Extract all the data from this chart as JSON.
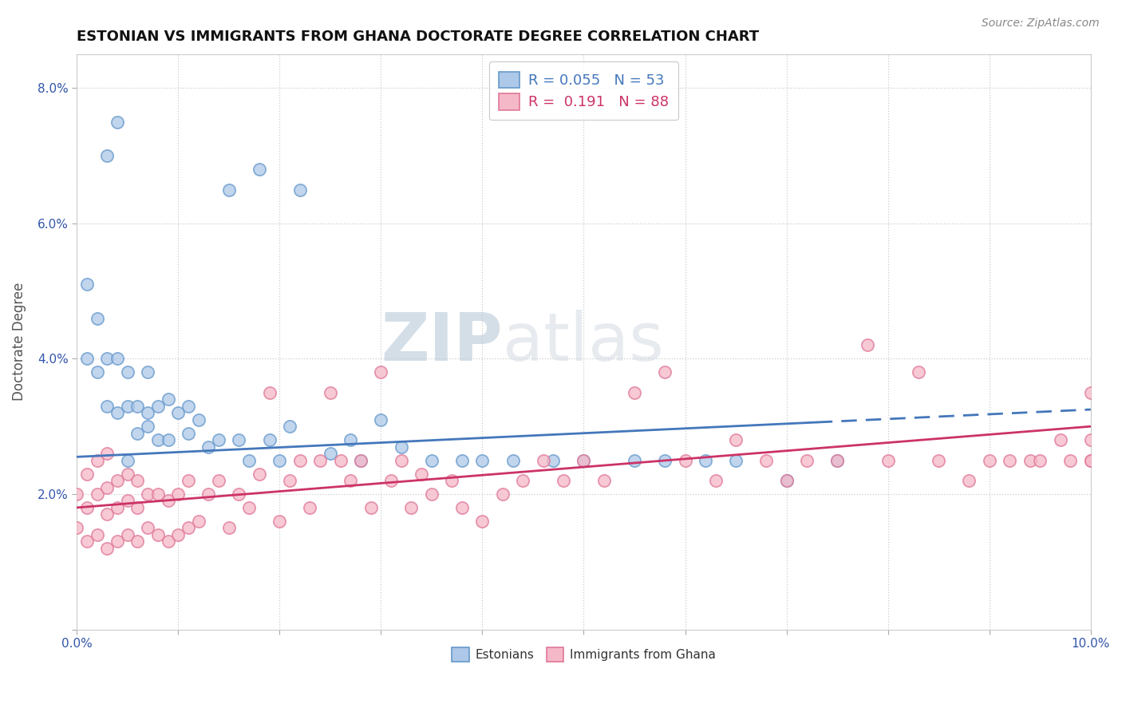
{
  "title": "ESTONIAN VS IMMIGRANTS FROM GHANA DOCTORATE DEGREE CORRELATION CHART",
  "source": "Source: ZipAtlas.com",
  "ylabel": "Doctorate Degree",
  "xlim": [
    0.0,
    0.1
  ],
  "ylim": [
    0.0,
    0.085
  ],
  "xtick_positions": [
    0.0,
    0.01,
    0.02,
    0.03,
    0.04,
    0.05,
    0.06,
    0.07,
    0.08,
    0.09,
    0.1
  ],
  "xticklabels": [
    "0.0%",
    "",
    "",
    "",
    "",
    "",
    "",
    "",
    "",
    "",
    "10.0%"
  ],
  "ytick_positions": [
    0.0,
    0.02,
    0.04,
    0.06,
    0.08
  ],
  "yticklabels": [
    "",
    "2.0%",
    "4.0%",
    "6.0%",
    "8.0%"
  ],
  "legend_line1": "R = 0.055   N = 53",
  "legend_line2": "R =  0.191   N = 88",
  "blue_face": "#adc8e8",
  "blue_edge": "#6699cc",
  "pink_face": "#f5b8c8",
  "pink_edge": "#e07898",
  "line_blue_color": "#4477bb",
  "line_pink_color": "#cc3366",
  "watermark_text": "ZIPatlas",
  "watermark_color": "#d0d8e8",
  "blue_line_solid_end": 0.073,
  "blue_line_y_start": 0.0255,
  "blue_line_y_end": 0.0325,
  "pink_line_y_start": 0.018,
  "pink_line_y_end": 0.03,
  "est_x": [
    0.001,
    0.001,
    0.002,
    0.002,
    0.003,
    0.003,
    0.004,
    0.004,
    0.005,
    0.005,
    0.006,
    0.006,
    0.007,
    0.007,
    0.007,
    0.008,
    0.008,
    0.009,
    0.009,
    0.01,
    0.011,
    0.011,
    0.012,
    0.013,
    0.014,
    0.015,
    0.016,
    0.017,
    0.018,
    0.019,
    0.02,
    0.021,
    0.022,
    0.025,
    0.027,
    0.028,
    0.03,
    0.032,
    0.035,
    0.038,
    0.04,
    0.043,
    0.047,
    0.05,
    0.055,
    0.058,
    0.062,
    0.065,
    0.07,
    0.075,
    0.003,
    0.004,
    0.005
  ],
  "est_y": [
    0.04,
    0.051,
    0.038,
    0.046,
    0.033,
    0.04,
    0.032,
    0.04,
    0.033,
    0.038,
    0.029,
    0.033,
    0.03,
    0.032,
    0.038,
    0.028,
    0.033,
    0.028,
    0.034,
    0.032,
    0.029,
    0.033,
    0.031,
    0.027,
    0.028,
    0.065,
    0.028,
    0.025,
    0.068,
    0.028,
    0.025,
    0.03,
    0.065,
    0.026,
    0.028,
    0.025,
    0.031,
    0.027,
    0.025,
    0.025,
    0.025,
    0.025,
    0.025,
    0.025,
    0.025,
    0.025,
    0.025,
    0.025,
    0.022,
    0.025,
    0.07,
    0.075,
    0.025
  ],
  "gha_x": [
    0.0,
    0.0,
    0.001,
    0.001,
    0.001,
    0.002,
    0.002,
    0.002,
    0.003,
    0.003,
    0.003,
    0.003,
    0.004,
    0.004,
    0.004,
    0.005,
    0.005,
    0.005,
    0.006,
    0.006,
    0.006,
    0.007,
    0.007,
    0.008,
    0.008,
    0.009,
    0.009,
    0.01,
    0.01,
    0.011,
    0.011,
    0.012,
    0.013,
    0.014,
    0.015,
    0.016,
    0.017,
    0.018,
    0.019,
    0.02,
    0.021,
    0.022,
    0.023,
    0.024,
    0.025,
    0.026,
    0.027,
    0.028,
    0.029,
    0.03,
    0.031,
    0.032,
    0.033,
    0.034,
    0.035,
    0.037,
    0.038,
    0.04,
    0.042,
    0.044,
    0.046,
    0.048,
    0.05,
    0.052,
    0.055,
    0.058,
    0.06,
    0.063,
    0.065,
    0.068,
    0.07,
    0.072,
    0.075,
    0.078,
    0.08,
    0.083,
    0.085,
    0.088,
    0.09,
    0.092,
    0.094,
    0.095,
    0.097,
    0.098,
    0.1,
    0.1,
    0.1,
    0.1
  ],
  "gha_y": [
    0.015,
    0.02,
    0.013,
    0.018,
    0.023,
    0.014,
    0.02,
    0.025,
    0.012,
    0.017,
    0.021,
    0.026,
    0.013,
    0.018,
    0.022,
    0.014,
    0.019,
    0.023,
    0.013,
    0.018,
    0.022,
    0.015,
    0.02,
    0.014,
    0.02,
    0.013,
    0.019,
    0.014,
    0.02,
    0.015,
    0.022,
    0.016,
    0.02,
    0.022,
    0.015,
    0.02,
    0.018,
    0.023,
    0.035,
    0.016,
    0.022,
    0.025,
    0.018,
    0.025,
    0.035,
    0.025,
    0.022,
    0.025,
    0.018,
    0.038,
    0.022,
    0.025,
    0.018,
    0.023,
    0.02,
    0.022,
    0.018,
    0.016,
    0.02,
    0.022,
    0.025,
    0.022,
    0.025,
    0.022,
    0.035,
    0.038,
    0.025,
    0.022,
    0.028,
    0.025,
    0.022,
    0.025,
    0.025,
    0.042,
    0.025,
    0.038,
    0.025,
    0.022,
    0.025,
    0.025,
    0.025,
    0.025,
    0.028,
    0.025,
    0.035,
    0.025,
    0.028,
    0.025
  ]
}
